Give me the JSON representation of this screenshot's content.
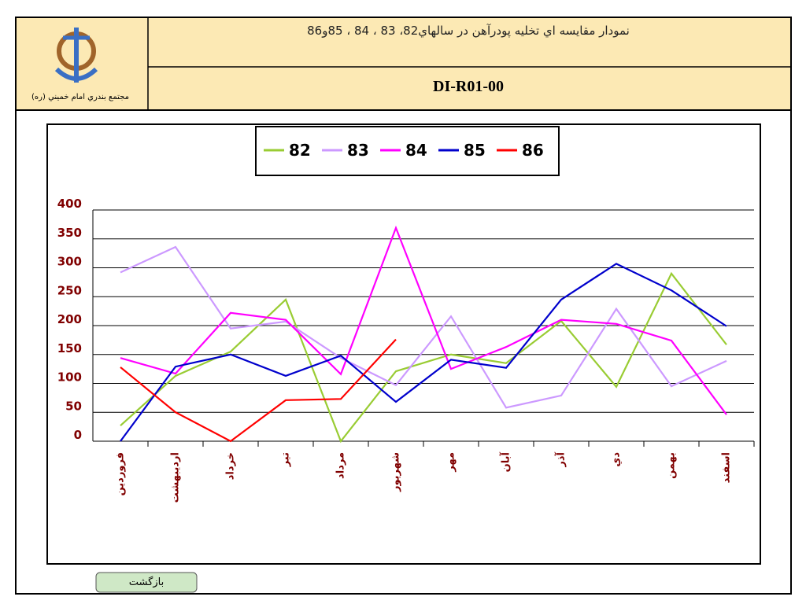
{
  "header": {
    "title": "نمودار مقايسه اي تخليه پودرآهن در سالهاي82، 83 ، 84 ، 85و86",
    "code": "DI-R01-00",
    "logo_caption": "مجتمع بندري امام خميني (ره)"
  },
  "button": "بازگشت",
  "chart_data": {
    "type": "line",
    "categories": [
      "فروردين",
      "ارديبهشت",
      "خرداد",
      "تير",
      "مرداد",
      "شهريور",
      "مهر",
      "آبان",
      "آذر",
      "دي",
      "بهمن",
      "اسفند"
    ],
    "series": [
      {
        "name": "82",
        "color": "#99cc33",
        "values": [
          27,
          113,
          155,
          245,
          0,
          121,
          150,
          135,
          208,
          94,
          290,
          167
        ]
      },
      {
        "name": "83",
        "color": "#cc99ff",
        "values": [
          292,
          336,
          195,
          207,
          144,
          97,
          216,
          58,
          79,
          229,
          95,
          139
        ]
      },
      {
        "name": "84",
        "color": "#ff00ff",
        "values": [
          144,
          117,
          222,
          210,
          116,
          369,
          125,
          163,
          210,
          203,
          174,
          46
        ]
      },
      {
        "name": "85",
        "color": "#0000cc",
        "values": [
          0,
          129,
          150,
          113,
          148,
          68,
          141,
          127,
          245,
          307,
          261,
          199
        ]
      },
      {
        "name": "86",
        "color": "#ff0000",
        "values": [
          128,
          50,
          0,
          71,
          73,
          176,
          null,
          null,
          null,
          null,
          null,
          null
        ]
      }
    ],
    "ylim": [
      0,
      400
    ],
    "yticks": [
      0,
      50,
      100,
      150,
      200,
      250,
      300,
      350,
      400
    ],
    "grid": true,
    "legend": "top"
  }
}
